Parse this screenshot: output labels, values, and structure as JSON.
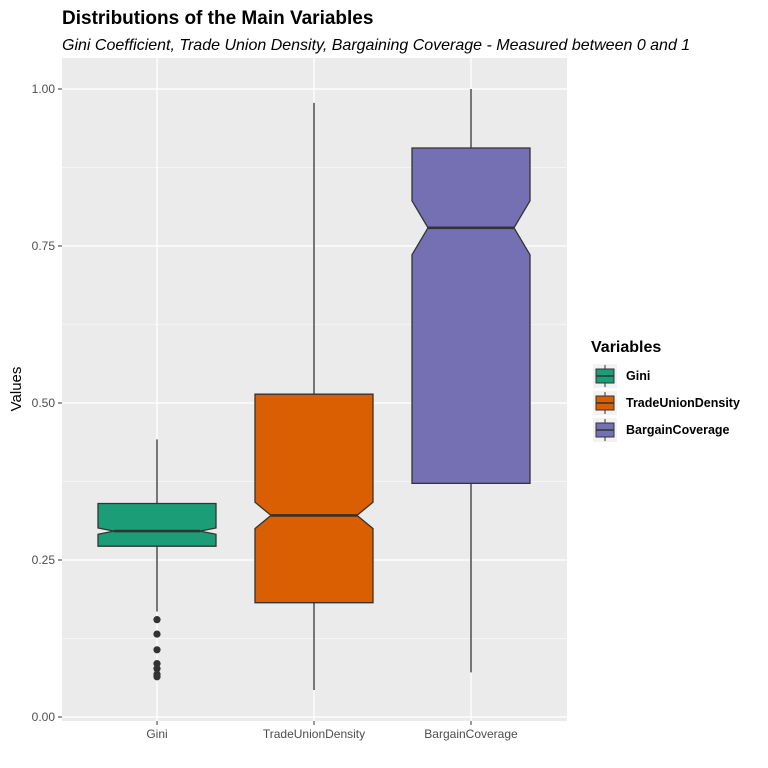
{
  "chart_data": {
    "type": "boxplot",
    "title": "Distributions of the Main Variables",
    "subtitle": "Gini Coefficient, Trade Union Density, Bargaining Coverage - Measured between 0 and 1",
    "xlabel": "",
    "ylabel": "Values",
    "ylim": [
      0,
      1.05
    ],
    "yticks": [
      0.0,
      0.25,
      0.5,
      0.75,
      1.0
    ],
    "ytick_labels": [
      "0.00",
      "0.25",
      "0.50",
      "0.75",
      "1.00"
    ],
    "notched": true,
    "grid": true,
    "categories": [
      "Gini",
      "TradeUnionDensity",
      "BargainCoverage"
    ],
    "legend": {
      "title": "Variables",
      "position": "right",
      "entries": [
        "Gini",
        "TradeUnionDensity",
        "BargainCoverage"
      ]
    },
    "series": [
      {
        "name": "Gini",
        "color": "#1B9E77",
        "whisker_low": 0.168,
        "q1": 0.272,
        "median": 0.296,
        "q3": 0.34,
        "whisker_high": 0.442,
        "notch_low": 0.291,
        "notch_high": 0.301,
        "outliers": [
          0.155,
          0.132,
          0.107,
          0.085,
          0.077,
          0.068,
          0.064
        ]
      },
      {
        "name": "TradeUnionDensity",
        "color": "#D95F02",
        "whisker_low": 0.043,
        "q1": 0.182,
        "median": 0.321,
        "q3": 0.514,
        "whisker_high": 0.978,
        "notch_low": 0.3,
        "notch_high": 0.342,
        "outliers": []
      },
      {
        "name": "BargainCoverage",
        "color": "#7570B3",
        "whisker_low": 0.071,
        "q1": 0.372,
        "median": 0.779,
        "q3": 0.906,
        "whisker_high": 1.0,
        "notch_low": 0.736,
        "notch_high": 0.822,
        "outliers": []
      }
    ]
  }
}
